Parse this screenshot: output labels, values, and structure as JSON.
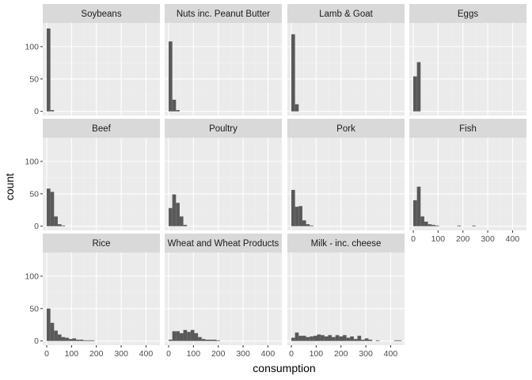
{
  "chart_data": {
    "type": "histogram",
    "xlabel": "consumption",
    "ylabel": "count",
    "xlim": [
      -16,
      456
    ],
    "ylim": [
      -6.5,
      136.5
    ],
    "x_ticks": [
      0,
      100,
      200,
      300,
      400
    ],
    "y_ticks": [
      0,
      50,
      100
    ],
    "bin_width": 14.8,
    "grid": true,
    "legend": "none",
    "colors": {
      "panel_background": "#ebebeb",
      "grid_major": "#ffffff",
      "grid_minor": "#f2f2f2",
      "strip_background": "#d9d9d9",
      "bar_fill": "#595959",
      "tick_color": "#333333"
    },
    "panels": [
      {
        "name": "Soybeans",
        "bins": [
          [
            0,
            128
          ],
          [
            14.8,
            2
          ]
        ]
      },
      {
        "name": "Nuts inc. Peanut Butter",
        "bins": [
          [
            0,
            108
          ],
          [
            14.8,
            18
          ],
          [
            29.6,
            2
          ]
        ]
      },
      {
        "name": "Lamb & Goat",
        "bins": [
          [
            0,
            119
          ],
          [
            14.8,
            11
          ]
        ]
      },
      {
        "name": "Eggs",
        "bins": [
          [
            0,
            54
          ],
          [
            14.8,
            76
          ]
        ]
      },
      {
        "name": "Beef",
        "bins": [
          [
            0,
            58
          ],
          [
            14.8,
            53
          ],
          [
            29.6,
            15
          ],
          [
            44.4,
            3
          ],
          [
            59.2,
            1
          ]
        ]
      },
      {
        "name": "Poultry",
        "bins": [
          [
            0,
            28
          ],
          [
            14.8,
            49
          ],
          [
            29.6,
            36
          ],
          [
            44.4,
            15
          ],
          [
            59.2,
            2
          ]
        ]
      },
      {
        "name": "Pork",
        "bins": [
          [
            0,
            56
          ],
          [
            14.8,
            30
          ],
          [
            29.6,
            31
          ],
          [
            44.4,
            9
          ],
          [
            59.2,
            3
          ],
          [
            74,
            1
          ]
        ]
      },
      {
        "name": "Fish",
        "bins": [
          [
            0,
            40
          ],
          [
            14.8,
            61
          ],
          [
            29.6,
            15
          ],
          [
            44.4,
            7
          ],
          [
            59.2,
            3
          ],
          [
            74,
            2
          ],
          [
            88.8,
            1
          ],
          [
            177.6,
            1
          ],
          [
            236.8,
            1
          ]
        ]
      },
      {
        "name": "Rice",
        "bins": [
          [
            0,
            50
          ],
          [
            14.8,
            28
          ],
          [
            29.6,
            16
          ],
          [
            44.4,
            10
          ],
          [
            59.2,
            6
          ],
          [
            74,
            5
          ],
          [
            88.8,
            3
          ],
          [
            103.6,
            4
          ],
          [
            118.4,
            2
          ],
          [
            133.2,
            2
          ],
          [
            148,
            1
          ],
          [
            162.8,
            1
          ],
          [
            177.6,
            1
          ]
        ]
      },
      {
        "name": "Wheat and Wheat Products",
        "bins": [
          [
            0,
            2
          ],
          [
            14.8,
            15
          ],
          [
            29.6,
            15
          ],
          [
            44.4,
            12
          ],
          [
            59.2,
            17
          ],
          [
            74,
            14
          ],
          [
            88.8,
            17
          ],
          [
            103.6,
            12
          ],
          [
            118.4,
            6
          ],
          [
            133.2,
            3
          ],
          [
            148,
            2
          ],
          [
            162.8,
            2
          ],
          [
            177.6,
            2
          ],
          [
            192.4,
            1
          ]
        ]
      },
      {
        "name": "Milk - inc. cheese",
        "bins": [
          [
            0,
            5
          ],
          [
            14.8,
            13
          ],
          [
            29.6,
            8
          ],
          [
            44.4,
            8
          ],
          [
            59.2,
            6
          ],
          [
            74,
            7
          ],
          [
            88.8,
            8
          ],
          [
            103.6,
            10
          ],
          [
            118.4,
            9
          ],
          [
            133.2,
            7
          ],
          [
            148,
            9
          ],
          [
            162.8,
            6
          ],
          [
            177.6,
            9
          ],
          [
            192.4,
            7
          ],
          [
            207.2,
            9
          ],
          [
            222,
            5
          ],
          [
            236.8,
            7
          ],
          [
            251.6,
            3
          ],
          [
            266.4,
            8
          ],
          [
            281.2,
            2
          ],
          [
            296,
            4
          ],
          [
            310.8,
            2
          ],
          [
            340.4,
            1
          ],
          [
            414.4,
            1
          ],
          [
            429.2,
            1
          ]
        ]
      }
    ]
  }
}
